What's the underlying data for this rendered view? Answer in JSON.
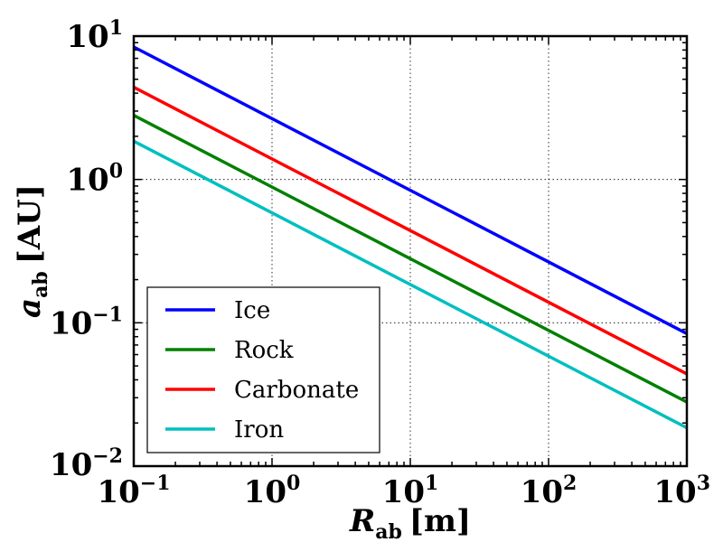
{
  "chart_data": {
    "type": "line",
    "x_scale": "log",
    "y_scale": "log",
    "xlim": [
      0.1,
      1000
    ],
    "ylim": [
      0.01,
      10
    ],
    "grid": true,
    "legend_location": "lower-left",
    "xlabel": {
      "var": "R",
      "sub": "ab",
      "unit": "[m]"
    },
    "ylabel": {
      "var": "a",
      "sub": "ab",
      "unit": "[AU]"
    },
    "x_ticks": [
      {
        "value": 0.1,
        "base": "10",
        "exp": "−1"
      },
      {
        "value": 1,
        "base": "10",
        "exp": "0"
      },
      {
        "value": 10,
        "base": "10",
        "exp": "1"
      },
      {
        "value": 100,
        "base": "10",
        "exp": "2"
      },
      {
        "value": 1000,
        "base": "10",
        "exp": "3"
      }
    ],
    "y_ticks": [
      {
        "value": 0.01,
        "base": "10",
        "exp": "−2"
      },
      {
        "value": 0.1,
        "base": "10",
        "exp": "−1"
      },
      {
        "value": 1,
        "base": "10",
        "exp": "0"
      },
      {
        "value": 10,
        "base": "10",
        "exp": "1"
      }
    ],
    "series": [
      {
        "name": "Ice",
        "color": "#0000ff",
        "x": [
          0.1,
          1000
        ],
        "y": [
          8.4,
          0.084
        ]
      },
      {
        "name": "Rock",
        "color": "#008000",
        "x": [
          0.1,
          1000
        ],
        "y": [
          2.8,
          0.028
        ]
      },
      {
        "name": "Carbonate",
        "color": "#ff0000",
        "x": [
          0.1,
          1000
        ],
        "y": [
          4.4,
          0.044
        ]
      },
      {
        "name": "Iron",
        "color": "#00bfbf",
        "x": [
          0.1,
          1000
        ],
        "y": [
          1.85,
          0.0185
        ]
      }
    ],
    "legend_order": [
      "Ice",
      "Rock",
      "Carbonate",
      "Iron"
    ]
  }
}
